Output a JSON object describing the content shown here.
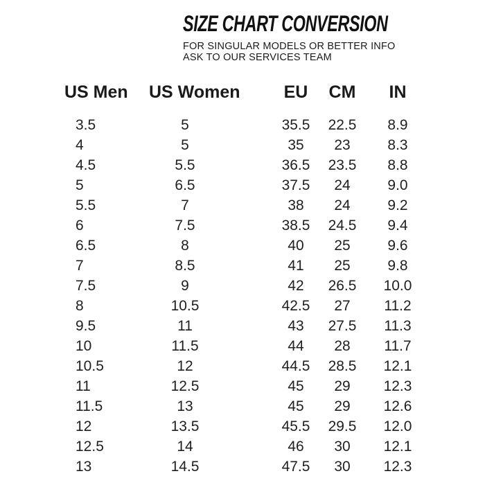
{
  "header": {
    "title": "SIZE CHART CONVERSION",
    "subtitle_line1": "FOR SINGULAR MODELS OR BETTER INFO",
    "subtitle_line2": "ASK TO OUR SERVICES TEAM"
  },
  "table": {
    "columns": [
      "US Men",
      "US Women",
      "EU",
      "CM",
      "IN"
    ],
    "rows": [
      {
        "us_men": "3.5",
        "us_women": "5",
        "eu": "35.5",
        "cm": "22.5",
        "in": "8.9"
      },
      {
        "us_men": "4",
        "us_women": "5",
        "eu": "35",
        "cm": "23",
        "in": "8.3"
      },
      {
        "us_men": "4.5",
        "us_women": "5.5",
        "eu": "36.5",
        "cm": "23.5",
        "in": "8.8"
      },
      {
        "us_men": "5",
        "us_women": "6.5",
        "eu": "37.5",
        "cm": "24",
        "in": "9.0"
      },
      {
        "us_men": "5.5",
        "us_women": "7",
        "eu": "38",
        "cm": "24",
        "in": "9.2"
      },
      {
        "us_men": "6",
        "us_women": "7.5",
        "eu": "38.5",
        "cm": "24.5",
        "in": "9.4"
      },
      {
        "us_men": "6.5",
        "us_women": "8",
        "eu": "40",
        "cm": "25",
        "in": "9.6"
      },
      {
        "us_men": "7",
        "us_women": "8.5",
        "eu": "41",
        "cm": "25",
        "in": "9.8"
      },
      {
        "us_men": "7.5",
        "us_women": "9",
        "eu": "42",
        "cm": "26.5",
        "in": "10.0"
      },
      {
        "us_men": "8",
        "us_women": "10.5",
        "eu": "42.5",
        "cm": "27",
        "in": "11.2"
      },
      {
        "us_men": "9.5",
        "us_women": "11",
        "eu": "43",
        "cm": "27.5",
        "in": "11.3"
      },
      {
        "us_men": "10",
        "us_women": "11.5",
        "eu": "44",
        "cm": "28",
        "in": "11.7"
      },
      {
        "us_men": "10.5",
        "us_women": "12",
        "eu": "44.5",
        "cm": "28.5",
        "in": "12.1"
      },
      {
        "us_men": "11",
        "us_women": "12.5",
        "eu": "45",
        "cm": "29",
        "in": "12.3"
      },
      {
        "us_men": "11.5",
        "us_women": "13",
        "eu": "45",
        "cm": "29",
        "in": "12.6"
      },
      {
        "us_men": "12",
        "us_women": "13.5",
        "eu": "45.5",
        "cm": "29.5",
        "in": "12.0"
      },
      {
        "us_men": "12.5",
        "us_women": "14",
        "eu": "46",
        "cm": "30",
        "in": "12.1"
      },
      {
        "us_men": "13",
        "us_women": "14.5",
        "eu": "47.5",
        "cm": "30",
        "in": "12.3"
      }
    ]
  },
  "colors": {
    "text": "#1a1a1a",
    "background": "#ffffff"
  }
}
